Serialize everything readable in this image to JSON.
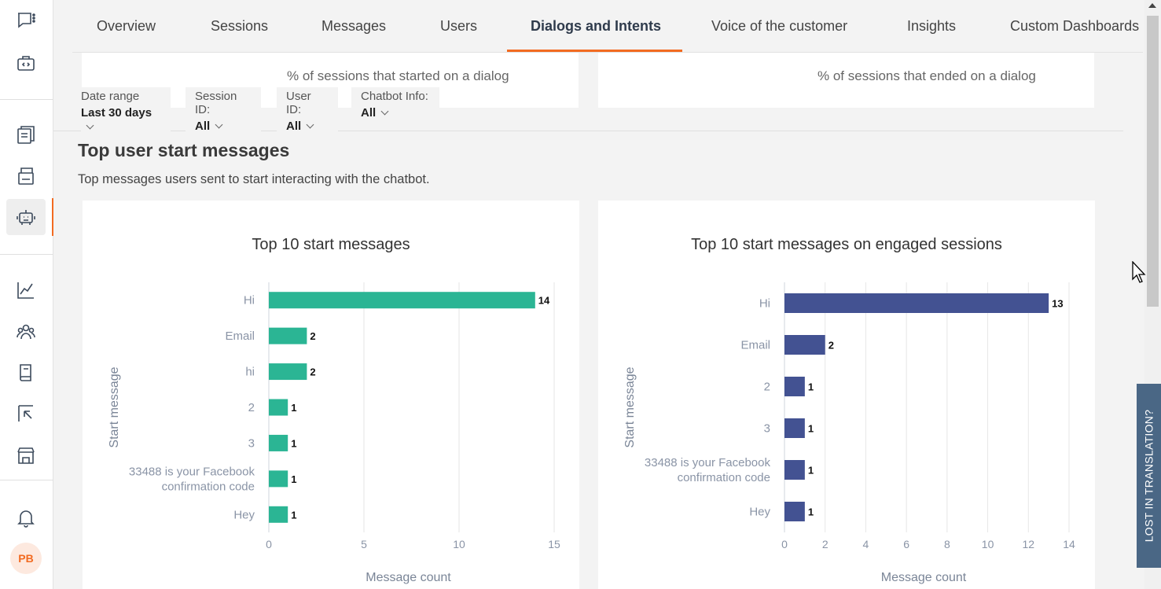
{
  "sidebar": {
    "items": [
      {
        "name": "conversations-icon"
      },
      {
        "name": "developer-icon"
      },
      {
        "name": "flows-icon"
      },
      {
        "name": "templates-icon"
      },
      {
        "name": "chatbot-icon"
      },
      {
        "name": "analytics-icon"
      },
      {
        "name": "people-icon"
      },
      {
        "name": "docs-icon"
      },
      {
        "name": "exports-icon"
      },
      {
        "name": "store-icon"
      },
      {
        "name": "bell-icon"
      }
    ],
    "avatar_initials": "PB"
  },
  "tabs": [
    {
      "label": "Overview"
    },
    {
      "label": "Sessions"
    },
    {
      "label": "Messages"
    },
    {
      "label": "Users"
    },
    {
      "label": "Dialogs and Intents",
      "active": true
    },
    {
      "label": "Voice of the customer"
    },
    {
      "label": "Insights"
    },
    {
      "label": "Custom Dashboards"
    }
  ],
  "prev_cards": {
    "left_text": "% of sessions that started on a dialog",
    "right_text": "% of sessions that ended on a dialog"
  },
  "filters": {
    "date_range": {
      "label": "Date range",
      "value": "Last 30 days"
    },
    "session_id": {
      "label": "Session ID:",
      "value": "All"
    },
    "user_id": {
      "label": "User ID:",
      "value": "All"
    },
    "chatbot_info": {
      "label": "Chatbot Info:",
      "value": "All"
    }
  },
  "section": {
    "title": "Top user start messages",
    "description": "Top messages users sent to start interacting with the chatbot."
  },
  "side_tab": {
    "label": "LOST IN TRANSLATION?"
  },
  "colors": {
    "accent": "#f26b21",
    "teal": "#2bb594",
    "indigo": "#435292"
  },
  "chart_data": [
    {
      "type": "bar",
      "orientation": "horizontal",
      "title": "Top 10 start messages",
      "xlabel": "Message count",
      "ylabel": "Start message",
      "categories": [
        "Hi",
        "Email",
        "hi",
        "2",
        "3",
        "33488 is your Facebook confirmation code",
        "Hey"
      ],
      "values": [
        14,
        2,
        2,
        1,
        1,
        1,
        1
      ],
      "xlim": [
        0,
        15
      ],
      "xticks": [
        0,
        5,
        10,
        15
      ],
      "color": "#2bb594"
    },
    {
      "type": "bar",
      "orientation": "horizontal",
      "title": "Top 10 start messages on engaged sessions",
      "xlabel": "Message count",
      "ylabel": "Start message",
      "categories": [
        "Hi",
        "Email",
        "2",
        "3",
        "33488 is your Facebook confirmation code",
        "Hey"
      ],
      "values": [
        13,
        2,
        1,
        1,
        1,
        1
      ],
      "xlim": [
        0,
        14
      ],
      "xticks": [
        0,
        2,
        4,
        6,
        8,
        10,
        12,
        14
      ],
      "color": "#435292"
    }
  ]
}
